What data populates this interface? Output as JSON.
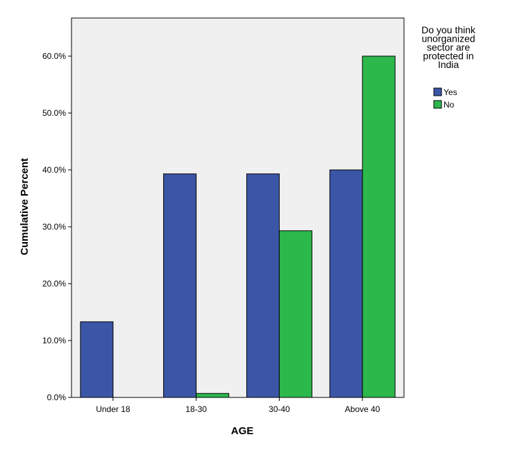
{
  "chart_data": {
    "type": "bar",
    "categories": [
      "Under 18",
      "18-30",
      "30-40",
      "Above 40"
    ],
    "series": [
      {
        "name": "Yes",
        "color": "#3c56a7",
        "values": [
          13.3,
          39.3,
          39.3,
          40.0
        ]
      },
      {
        "name": "No",
        "color": "#2db84c",
        "values": [
          null,
          0.7,
          29.3,
          60.0
        ]
      }
    ],
    "xlabel": "AGE",
    "ylabel": "Cumulative Percent",
    "ylim": [
      0,
      66.7
    ],
    "yticks": [
      {
        "value": 0,
        "label": "0.0%"
      },
      {
        "value": 10,
        "label": "10.0%"
      },
      {
        "value": 20,
        "label": "20.0%"
      },
      {
        "value": 30,
        "label": "30.0%"
      },
      {
        "value": 40,
        "label": "40.0%"
      },
      {
        "value": 50,
        "label": "50.0%"
      },
      {
        "value": 60,
        "label": "60.0%"
      }
    ],
    "grid": false,
    "plot_background": "#f0f0f0",
    "legend": {
      "placement": "right",
      "title_lines": [
        "Do you think",
        "unorganized",
        "sector are",
        "protected in",
        "India"
      ]
    }
  }
}
